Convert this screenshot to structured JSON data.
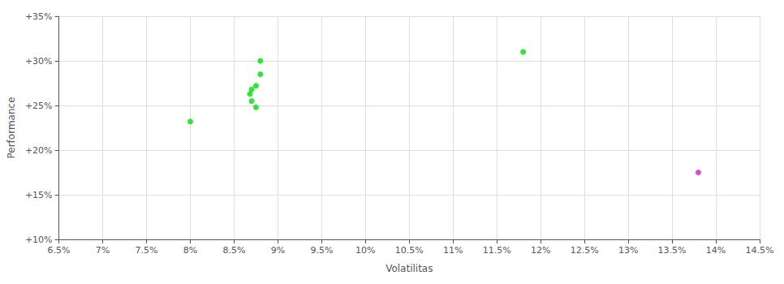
{
  "chart_data": {
    "type": "scatter",
    "xlabel": "Volatilitas",
    "ylabel": "Performance",
    "series": [
      {
        "color": "#00dd00",
        "marker": "circle",
        "x": [
          0.088,
          0.088,
          0.0875,
          0.087,
          0.0868,
          0.087,
          0.0875,
          0.08,
          0.118
        ],
        "values": [
          0.3,
          0.285,
          0.272,
          0.268,
          0.263,
          0.255,
          0.248,
          0.232,
          0.31
        ]
      },
      {
        "color": "#cc22cc",
        "marker": "circle",
        "x": [
          0.138
        ],
        "values": [
          0.175
        ]
      }
    ],
    "xlim": [
      0.065,
      0.145
    ],
    "ylim": [
      0.1,
      0.35
    ],
    "xticks": [
      {
        "value": 0.065,
        "label": "6.5%"
      },
      {
        "value": 0.07,
        "label": "7%"
      },
      {
        "value": 0.075,
        "label": "7.5%"
      },
      {
        "value": 0.08,
        "label": "8%"
      },
      {
        "value": 0.085,
        "label": "8.5%"
      },
      {
        "value": 0.09,
        "label": "9%"
      },
      {
        "value": 0.095,
        "label": "9.5%"
      },
      {
        "value": 0.1,
        "label": "10%"
      },
      {
        "value": 0.105,
        "label": "10.5%"
      },
      {
        "value": 0.11,
        "label": "11%"
      },
      {
        "value": 0.115,
        "label": "11.5%"
      },
      {
        "value": 0.12,
        "label": "12%"
      },
      {
        "value": 0.125,
        "label": "12.5%"
      },
      {
        "value": 0.13,
        "label": "13%"
      },
      {
        "value": 0.135,
        "label": "13.5%"
      },
      {
        "value": 0.14,
        "label": "14%"
      },
      {
        "value": 0.145,
        "label": "14.5%"
      }
    ],
    "yticks": [
      {
        "value": 0.1,
        "label": "+10%"
      },
      {
        "value": 0.15,
        "label": "+15%"
      },
      {
        "value": 0.2,
        "label": "+20%"
      },
      {
        "value": 0.25,
        "label": "+25%"
      },
      {
        "value": 0.3,
        "label": "+30%"
      },
      {
        "value": 0.35,
        "label": "+35%"
      }
    ],
    "grid": true
  }
}
